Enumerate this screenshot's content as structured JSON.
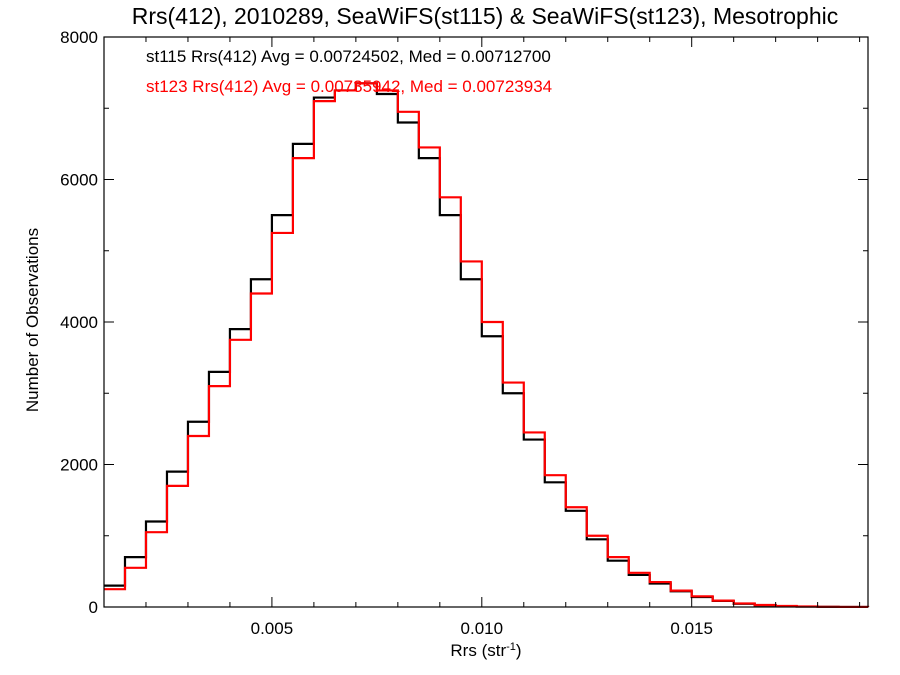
{
  "chart_data": {
    "type": "histogram",
    "title": "Rrs(412), 2010289, SeaWiFS(st115) & SeaWiFS(st123), Mesotrophic",
    "xlabel_main": "Rrs (str",
    "xlabel_sup": "-1",
    "xlabel_close": ")",
    "ylabel": "Number of Observations",
    "xlim": [
      0.001,
      0.0192
    ],
    "ylim": [
      0,
      8000
    ],
    "x_ticks": [
      {
        "value": 0.005,
        "label": "0.005"
      },
      {
        "value": 0.01,
        "label": "0.010"
      },
      {
        "value": 0.015,
        "label": "0.015"
      }
    ],
    "x_minor_step": 0.001,
    "y_ticks": [
      {
        "value": 0,
        "label": "0"
      },
      {
        "value": 2000,
        "label": "2000"
      },
      {
        "value": 4000,
        "label": "4000"
      },
      {
        "value": 6000,
        "label": "6000"
      },
      {
        "value": 8000,
        "label": "8000"
      }
    ],
    "y_minor_step": 1000,
    "legend_placement": "top-left",
    "series": [
      {
        "label": "st115 Rrs(412) Avg = 0.00724502, Med = 0.00712700",
        "color": "#000000",
        "x": [
          0.001,
          0.0015,
          0.002,
          0.0025,
          0.003,
          0.0035,
          0.004,
          0.0045,
          0.005,
          0.0055,
          0.006,
          0.0065,
          0.007,
          0.0075,
          0.008,
          0.0085,
          0.009,
          0.0095,
          0.01,
          0.0105,
          0.011,
          0.0115,
          0.012,
          0.0125,
          0.013,
          0.0135,
          0.014,
          0.0145,
          0.015,
          0.0155,
          0.016,
          0.0165,
          0.017,
          0.0175,
          0.018,
          0.0185,
          0.0192
        ],
        "counts": [
          300,
          700,
          1200,
          1900,
          2600,
          3300,
          3900,
          4600,
          5500,
          6500,
          7150,
          7250,
          7350,
          7200,
          6800,
          6300,
          5500,
          4600,
          3800,
          3000,
          2350,
          1750,
          1350,
          950,
          650,
          450,
          330,
          220,
          140,
          85,
          45,
          25,
          12,
          6,
          3,
          1,
          0
        ]
      },
      {
        "label": "st123 Rrs(412) Avg = 0.00735942, Med = 0.00723934",
        "color": "#ff0000",
        "x": [
          0.001,
          0.0015,
          0.002,
          0.0025,
          0.003,
          0.0035,
          0.004,
          0.0045,
          0.005,
          0.0055,
          0.006,
          0.0065,
          0.007,
          0.0075,
          0.008,
          0.0085,
          0.009,
          0.0095,
          0.01,
          0.0105,
          0.011,
          0.0115,
          0.012,
          0.0125,
          0.013,
          0.0135,
          0.014,
          0.0145,
          0.015,
          0.0155,
          0.016,
          0.0165,
          0.017,
          0.0175,
          0.018,
          0.0185,
          0.0192
        ],
        "counts": [
          250,
          550,
          1050,
          1700,
          2400,
          3100,
          3750,
          4400,
          5250,
          6300,
          7100,
          7250,
          7350,
          7250,
          6950,
          6450,
          5750,
          4850,
          4000,
          3150,
          2450,
          1850,
          1400,
          1000,
          700,
          480,
          350,
          230,
          150,
          90,
          50,
          28,
          14,
          7,
          3,
          1,
          0
        ]
      }
    ]
  }
}
